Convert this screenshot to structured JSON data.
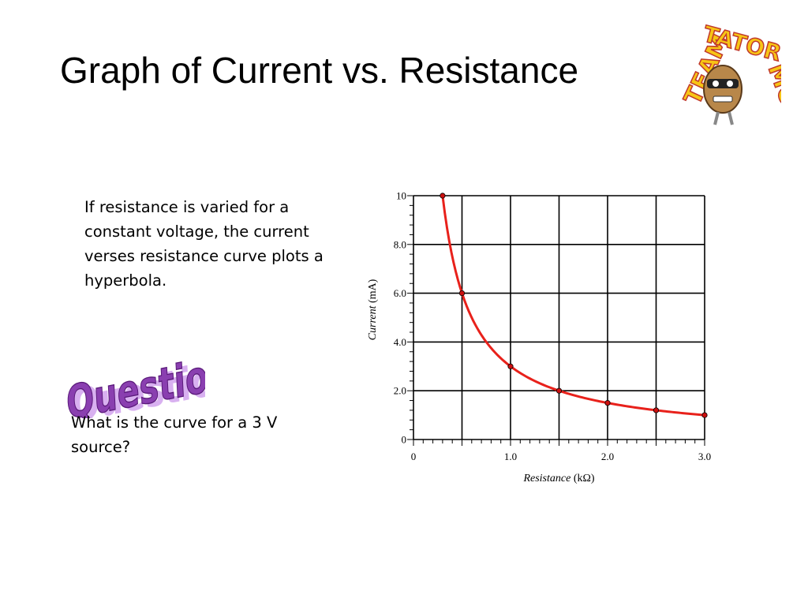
{
  "slide": {
    "title": "Graph of Current vs. Resistance",
    "body_text": "If resistance is varied for a constant voltage, the current verses resistance curve plots a hyperbola.",
    "question_label": "Question:",
    "question_text": "What is the curve for a 3 V source?"
  },
  "logo": {
    "text_left": "TEAM",
    "text_right": "MOPS",
    "text_top": "TATOR",
    "colors": {
      "letters": "#f7c515",
      "outline": "#c0392b"
    }
  },
  "colors": {
    "curve": "#e8211b",
    "points": "#cc1010",
    "grid": "#000000",
    "wordart_fill": "#8a3fb0",
    "wordart_shadow": "#d8b0f0"
  },
  "chart_data": {
    "type": "line",
    "xlabel_italic": "Resistance",
    "xlabel_unit": "(kΩ)",
    "ylabel_italic": "Current",
    "ylabel_unit": "(mA)",
    "xlim": [
      0,
      3.0
    ],
    "ylim": [
      0,
      10
    ],
    "x_ticks": [
      "0",
      "1.0",
      "2.0",
      "3.0"
    ],
    "y_ticks": [
      "0",
      "2.0",
      "4.0",
      "6.0",
      "8.0",
      "10"
    ],
    "grid": true,
    "series": [
      {
        "points": [
          [
            0.3,
            10
          ],
          [
            0.5,
            6
          ],
          [
            1.0,
            3
          ],
          [
            1.5,
            2
          ],
          [
            2.0,
            1.5
          ],
          [
            2.5,
            1.2
          ],
          [
            3.0,
            1.0
          ]
        ]
      }
    ]
  }
}
